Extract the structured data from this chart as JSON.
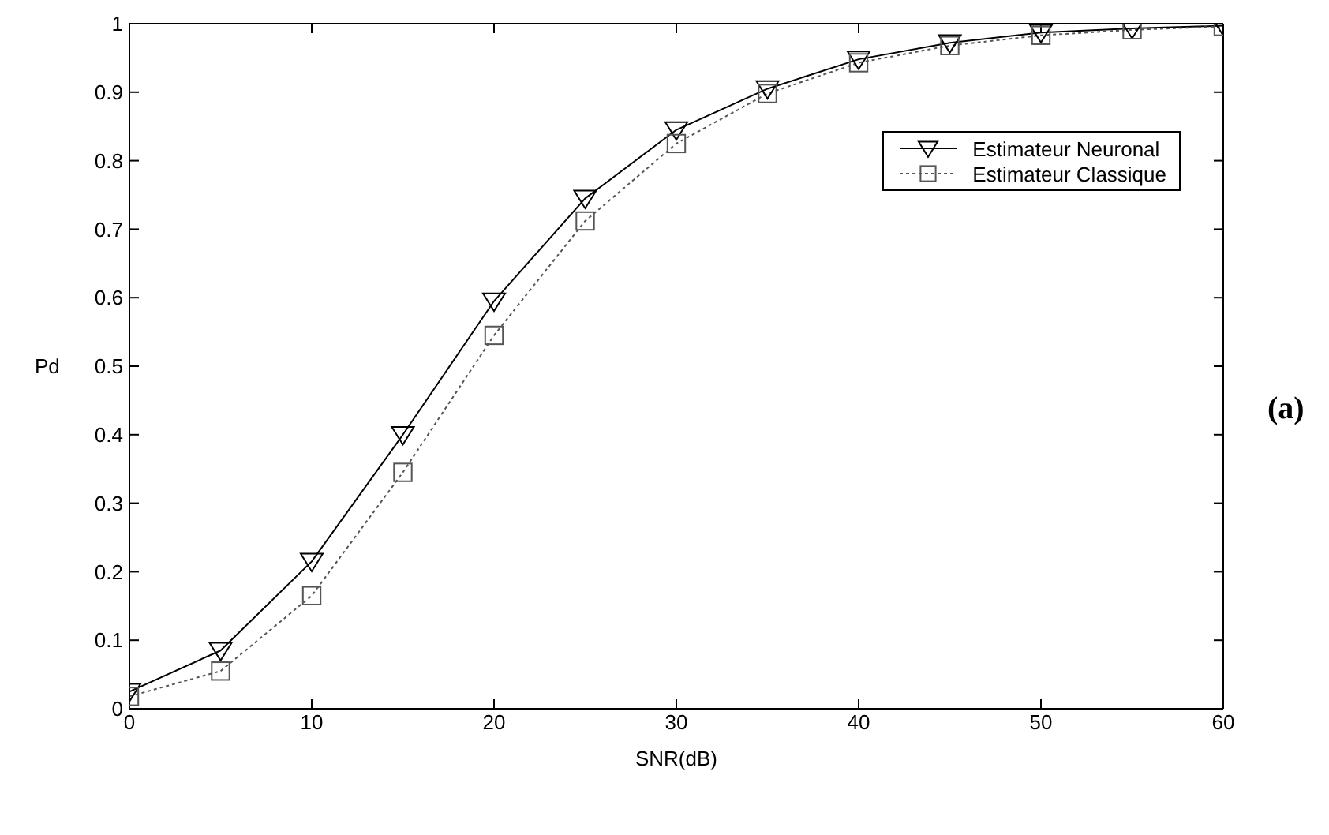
{
  "chart_data": {
    "type": "line",
    "xlabel": "SNR(dB)",
    "ylabel": "Pd",
    "x": [
      0,
      5,
      10,
      15,
      20,
      25,
      30,
      35,
      40,
      45,
      50,
      55,
      60
    ],
    "series": [
      {
        "name": "Estimateur Neuronal",
        "color": "#000000",
        "marker": "triangle",
        "line_style": "solid",
        "values": [
          0.025,
          0.085,
          0.215,
          0.4,
          0.595,
          0.745,
          0.845,
          0.905,
          0.948,
          0.972,
          0.987,
          0.993,
          0.997
        ]
      },
      {
        "name": "Estimateur Classique",
        "color": "#555555",
        "marker": "square",
        "line_style": "dotted",
        "values": [
          0.018,
          0.055,
          0.165,
          0.345,
          0.545,
          0.712,
          0.825,
          0.898,
          0.943,
          0.968,
          0.983,
          0.991,
          0.996
        ]
      }
    ],
    "xlim": [
      0,
      60
    ],
    "xticks": [
      0,
      10,
      20,
      30,
      40,
      50,
      60
    ],
    "ylim": [
      0,
      1
    ],
    "yticks": [
      0,
      0.1,
      0.2,
      0.3,
      0.4,
      0.5,
      0.6,
      0.7,
      0.8,
      0.9,
      1
    ],
    "legend": "top right",
    "annotations": [
      "(a)"
    ]
  }
}
